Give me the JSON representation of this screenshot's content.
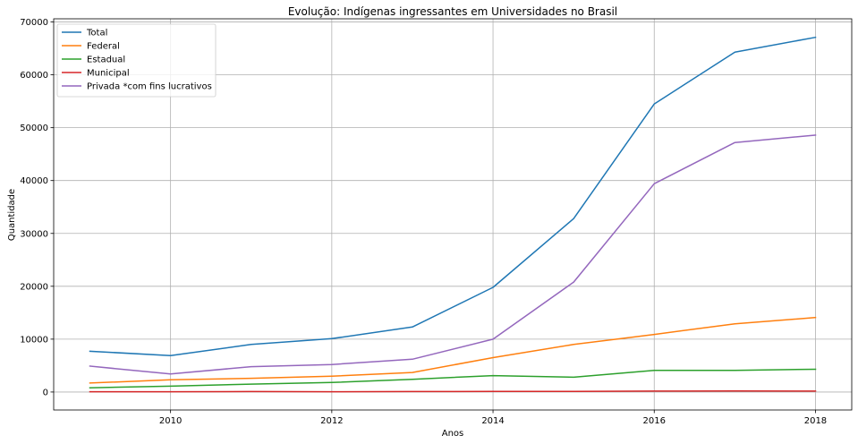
{
  "chart_data": {
    "type": "line",
    "title": "Evolução: Indígenas ingressantes em Universidades no Brasil",
    "xlabel": "Anos",
    "ylabel": "Quantidade",
    "x": [
      2009,
      2010,
      2011,
      2012,
      2013,
      2014,
      2015,
      2016,
      2017,
      2018
    ],
    "xlim": [
      2008.55,
      2018.45
    ],
    "ylim": [
      -3400,
      70600
    ],
    "xticks": [
      2010,
      2012,
      2014,
      2016,
      2018
    ],
    "yticks": [
      0,
      10000,
      20000,
      30000,
      40000,
      50000,
      60000,
      70000
    ],
    "grid": true,
    "legend_position": "top-left",
    "series": [
      {
        "name": "Total",
        "color": "#1f77b4",
        "values": [
          7700,
          6900,
          9000,
          10100,
          12300,
          19800,
          32800,
          54500,
          64300,
          67100
        ]
      },
      {
        "name": "Federal",
        "color": "#ff7f0e",
        "values": [
          1700,
          2300,
          2600,
          3000,
          3700,
          6500,
          9000,
          10900,
          12900,
          14100
        ]
      },
      {
        "name": "Estadual",
        "color": "#2ca02c",
        "values": [
          800,
          1100,
          1500,
          1800,
          2400,
          3100,
          2800,
          4100,
          4100,
          4300
        ]
      },
      {
        "name": "Municipal",
        "color": "#d62728",
        "values": [
          50,
          60,
          80,
          50,
          80,
          100,
          130,
          170,
          210,
          170
        ]
      },
      {
        "name": "Privada *com fins lucrativos",
        "color": "#9467bd",
        "values": [
          4900,
          3400,
          4800,
          5200,
          6200,
          10000,
          20800,
          39400,
          47200,
          48600
        ]
      }
    ]
  }
}
